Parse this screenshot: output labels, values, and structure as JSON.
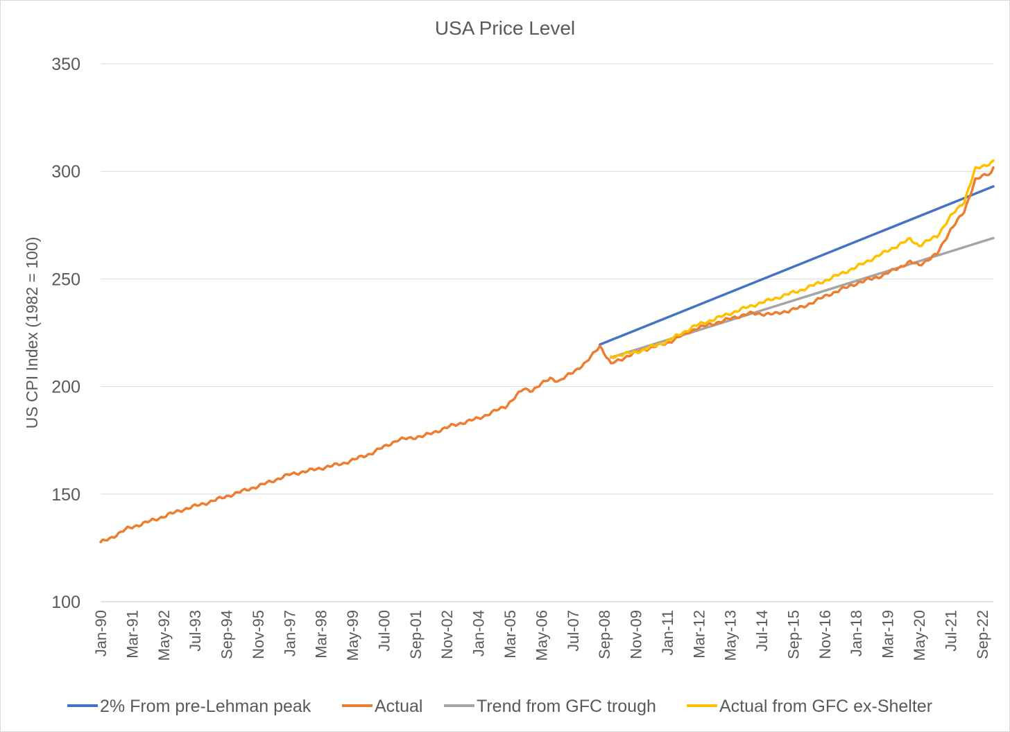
{
  "chart_data": {
    "type": "line",
    "title": "USA Price Level",
    "xlabel": "",
    "ylabel": "US CPI Index (1982 = 100)",
    "ylim": [
      100,
      350
    ],
    "yticks": [
      100,
      150,
      200,
      250,
      300,
      350
    ],
    "grid": true,
    "legend_position": "bottom",
    "x_start": "Jan-90",
    "x_end": "Feb-23",
    "x_tick_labels": [
      "Jan-90",
      "Mar-91",
      "May-92",
      "Jul-93",
      "Sep-94",
      "Nov-95",
      "Jan-97",
      "Mar-98",
      "May-99",
      "Jul-00",
      "Sep-01",
      "Nov-02",
      "Jan-04",
      "Mar-05",
      "May-06",
      "Jul-07",
      "Sep-08",
      "Nov-09",
      "Jan-11",
      "Mar-12",
      "May-13",
      "Jul-14",
      "Sep-15",
      "Nov-16",
      "Jan-18",
      "Mar-19",
      "May-20",
      "Jul-21",
      "Sep-22"
    ],
    "series": [
      {
        "name": "2% From pre-Lehman peak",
        "color": "#4472C4",
        "points": [
          [
            "Jul-08",
            219.5
          ],
          [
            "Feb-23",
            293.0
          ]
        ]
      },
      {
        "name": "Actual",
        "color": "#ED7D31",
        "points": [
          [
            "Jan-90",
            127.4
          ],
          [
            "Jun-90",
            129.9
          ],
          [
            "Jan-91",
            134.0
          ],
          [
            "Jan-92",
            138.1
          ],
          [
            "Jan-93",
            142.6
          ],
          [
            "Jan-94",
            146.2
          ],
          [
            "Jan-95",
            150.3
          ],
          [
            "Jan-96",
            154.4
          ],
          [
            "Jan-97",
            159.1
          ],
          [
            "Jan-98",
            161.6
          ],
          [
            "Jan-99",
            164.3
          ],
          [
            "Jan-00",
            168.8
          ],
          [
            "Jan-01",
            175.1
          ],
          [
            "Jan-02",
            177.1
          ],
          [
            "Jan-03",
            181.7
          ],
          [
            "Jan-04",
            185.2
          ],
          [
            "Jan-05",
            190.7
          ],
          [
            "Sep-05",
            198.8
          ],
          [
            "Jan-06",
            198.3
          ],
          [
            "Sep-06",
            203.9
          ],
          [
            "Jan-07",
            202.4
          ],
          [
            "Jan-08",
            211.1
          ],
          [
            "Jul-08",
            219.1
          ],
          [
            "Dec-08",
            210.2
          ],
          [
            "Jan-09",
            211.1
          ],
          [
            "Jan-10",
            216.7
          ],
          [
            "Jan-11",
            220.2
          ],
          [
            "Jan-12",
            226.7
          ],
          [
            "Jan-13",
            230.3
          ],
          [
            "Jan-14",
            233.9
          ],
          [
            "Jan-15",
            233.7
          ],
          [
            "Jan-16",
            236.9
          ],
          [
            "Jan-17",
            242.8
          ],
          [
            "Jan-18",
            247.9
          ],
          [
            "Jan-19",
            251.7
          ],
          [
            "Jan-20",
            257.9
          ],
          [
            "May-20",
            256.4
          ],
          [
            "Jan-21",
            261.6
          ],
          [
            "Jul-21",
            273.0
          ],
          [
            "Jan-22",
            281.1
          ],
          [
            "Jun-22",
            296.3
          ],
          [
            "Jan-23",
            299.2
          ],
          [
            "Feb-23",
            301.8
          ]
        ]
      },
      {
        "name": "Trend from GFC trough",
        "color": "#A5A5A5",
        "points": [
          [
            "Dec-08",
            213.5
          ],
          [
            "Feb-23",
            269.0
          ]
        ]
      },
      {
        "name": "Actual from GFC ex-Shelter",
        "color": "#FFC000",
        "points": [
          [
            "Dec-08",
            213.8
          ],
          [
            "Jan-10",
            216.5
          ],
          [
            "Jan-11",
            221.0
          ],
          [
            "Jan-12",
            228.0
          ],
          [
            "Jan-13",
            232.5
          ],
          [
            "Jan-14",
            237.0
          ],
          [
            "Jan-15",
            241.0
          ],
          [
            "Jan-16",
            245.0
          ],
          [
            "Jan-17",
            250.0
          ],
          [
            "Jan-18",
            255.5
          ],
          [
            "Jan-19",
            262.0
          ],
          [
            "Jan-20",
            268.5
          ],
          [
            "May-20",
            265.5
          ],
          [
            "Jan-21",
            270.0
          ],
          [
            "Jul-21",
            279.0
          ],
          [
            "Jan-22",
            286.0
          ],
          [
            "Jun-22",
            301.0
          ],
          [
            "Jan-23",
            304.0
          ],
          [
            "Feb-23",
            305.0
          ]
        ]
      }
    ]
  }
}
